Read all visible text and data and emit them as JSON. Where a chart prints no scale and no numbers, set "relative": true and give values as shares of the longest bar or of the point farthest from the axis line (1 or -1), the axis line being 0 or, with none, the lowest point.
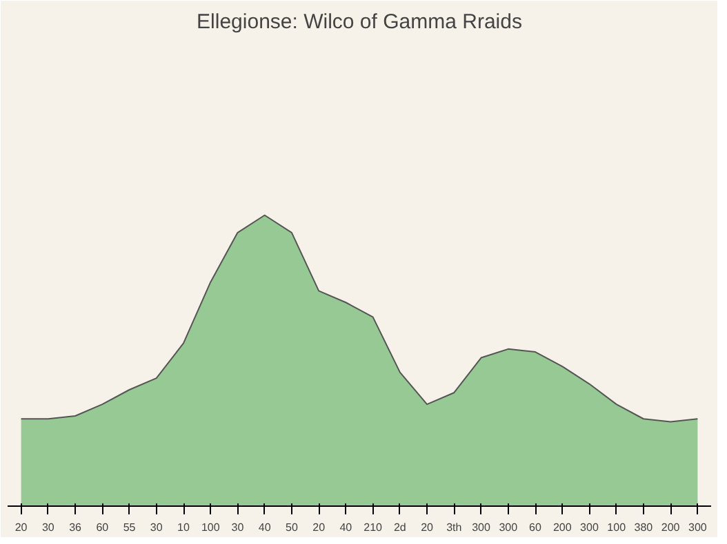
{
  "chart_data": {
    "type": "area",
    "title": "Ellegionse: Wilco of Gamma Rraids",
    "relative": true,
    "categories": [
      "20",
      "30",
      "36",
      "60",
      "55",
      "30",
      "10",
      "100",
      "30",
      "40",
      "50",
      "20",
      "40",
      "210",
      "2d",
      "20",
      "3th",
      "300",
      "300",
      "60",
      "200",
      "300",
      "100",
      "380",
      "200",
      "300"
    ],
    "series": [
      {
        "color": "#8cc48a",
        "values": [
          0.3,
          0.3,
          0.31,
          0.35,
          0.4,
          0.44,
          0.56,
          0.77,
          0.94,
          1.0,
          0.94,
          0.74,
          0.7,
          0.65,
          0.46,
          0.35,
          0.39,
          0.51,
          0.54,
          0.53,
          0.48,
          0.42,
          0.35,
          0.3,
          0.29,
          0.3
        ]
      }
    ]
  }
}
